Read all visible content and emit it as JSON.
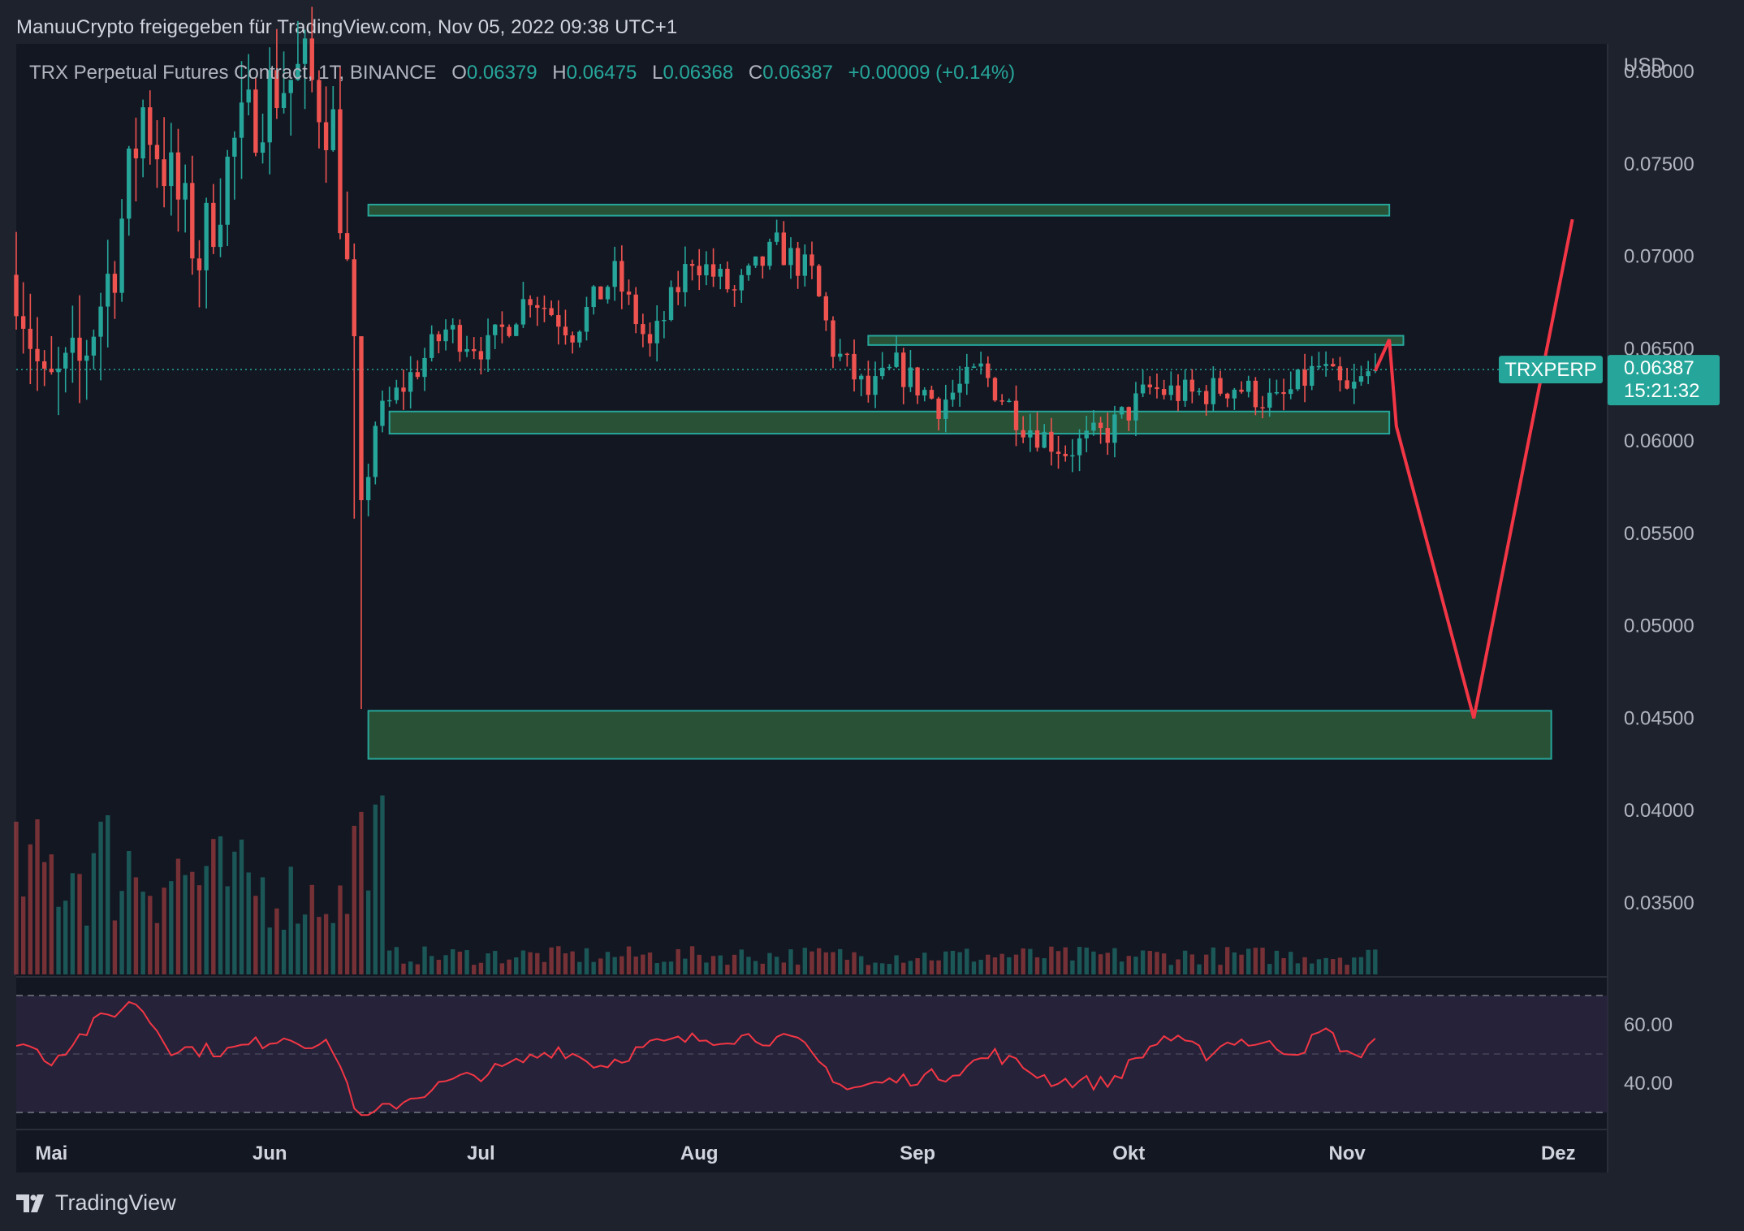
{
  "header": {
    "attribution": "ManuuCrypto freigegeben für TradingView.com, Nov 05, 2022 09:38 UTC+1"
  },
  "legend": {
    "symbol": "TRX Perpetual Futures Contract, 1T, BINANCE",
    "open_label": "O",
    "open": "0.06379",
    "high_label": "H",
    "high": "0.06475",
    "low_label": "L",
    "low": "0.06368",
    "close_label": "C",
    "close": "0.06387",
    "change": "+0.00009 (+0.14%)"
  },
  "price_axis": {
    "currency": "USD",
    "ticks": [
      "0.08000",
      "0.07500",
      "0.07000",
      "0.06500",
      "0.06000",
      "0.05500",
      "0.05000",
      "0.04500",
      "0.04000",
      "0.03500"
    ]
  },
  "price_tags": {
    "symbol": "TRXPERP",
    "last_price": "0.06387",
    "countdown": "15:21:32"
  },
  "rsi_axis": {
    "ticks": [
      "60.00",
      "40.00"
    ]
  },
  "time_axis": {
    "ticks": [
      "Mai",
      "Jun",
      "Jul",
      "Aug",
      "Sep",
      "Okt",
      "Nov",
      "Dez"
    ]
  },
  "branding": {
    "name": "TradingView"
  },
  "colors": {
    "background": "#131722",
    "panel": "#1e222d",
    "up": "#26a69a",
    "down": "#ef5350",
    "zone_fill": "#2e5c3a",
    "zone_border": "#26a69a",
    "projection": "#f23645",
    "rsi_line": "#f23645",
    "rsi_band": "#2a2640"
  },
  "chart_data": {
    "type": "candlestick",
    "title": "TRX Perpetual Futures Contract, 1T, BINANCE",
    "interval": "1 day",
    "y_unit": "USD",
    "ylim": [
      0.031,
      0.0815
    ],
    "x_range": [
      "2022-04-26",
      "2022-12-08"
    ],
    "grid": false,
    "last": {
      "open": 0.06379,
      "high": 0.06475,
      "low": 0.06368,
      "close": 0.06387,
      "change": 9e-05,
      "change_pct": 0.14
    },
    "ohlc_anchor_closes": [
      {
        "date": "2022-04-26",
        "close": 0.069
      },
      {
        "date": "2022-04-30",
        "close": 0.0625
      },
      {
        "date": "2022-05-05",
        "close": 0.064
      },
      {
        "date": "2022-05-10",
        "close": 0.07
      },
      {
        "date": "2022-05-14",
        "close": 0.078
      },
      {
        "date": "2022-05-18",
        "close": 0.074
      },
      {
        "date": "2022-05-22",
        "close": 0.07
      },
      {
        "date": "2022-05-27",
        "close": 0.076
      },
      {
        "date": "2022-06-01",
        "close": 0.079
      },
      {
        "date": "2022-06-06",
        "close": 0.08
      },
      {
        "date": "2022-06-10",
        "close": 0.077
      },
      {
        "date": "2022-06-13",
        "close": 0.065
      },
      {
        "date": "2022-06-14",
        "close": 0.056
      },
      {
        "date": "2022-06-16",
        "close": 0.061
      },
      {
        "date": "2022-06-20",
        "close": 0.063
      },
      {
        "date": "2022-06-26",
        "close": 0.066
      },
      {
        "date": "2022-07-02",
        "close": 0.065
      },
      {
        "date": "2022-07-08",
        "close": 0.068
      },
      {
        "date": "2022-07-14",
        "close": 0.066
      },
      {
        "date": "2022-07-20",
        "close": 0.069
      },
      {
        "date": "2022-07-25",
        "close": 0.065
      },
      {
        "date": "2022-07-31",
        "close": 0.07
      },
      {
        "date": "2022-08-06",
        "close": 0.068
      },
      {
        "date": "2022-08-12",
        "close": 0.0705
      },
      {
        "date": "2022-08-17",
        "close": 0.069
      },
      {
        "date": "2022-08-20",
        "close": 0.065
      },
      {
        "date": "2022-08-25",
        "close": 0.0625
      },
      {
        "date": "2022-08-29",
        "close": 0.064
      },
      {
        "date": "2022-09-04",
        "close": 0.062
      },
      {
        "date": "2022-09-10",
        "close": 0.0638
      },
      {
        "date": "2022-09-16",
        "close": 0.061
      },
      {
        "date": "2022-09-22",
        "close": 0.0595
      },
      {
        "date": "2022-09-28",
        "close": 0.0605
      },
      {
        "date": "2022-10-04",
        "close": 0.0628
      },
      {
        "date": "2022-10-10",
        "close": 0.0625
      },
      {
        "date": "2022-10-16",
        "close": 0.063
      },
      {
        "date": "2022-10-22",
        "close": 0.062
      },
      {
        "date": "2022-10-28",
        "close": 0.064
      },
      {
        "date": "2022-11-01",
        "close": 0.0625
      },
      {
        "date": "2022-11-05",
        "close": 0.0639
      }
    ],
    "zones": [
      {
        "from": "2022-06-15",
        "to": "2022-11-07",
        "low": 0.0722,
        "high": 0.0728
      },
      {
        "from": "2022-08-25",
        "to": "2022-11-09",
        "low": 0.0652,
        "high": 0.0657
      },
      {
        "from": "2022-06-18",
        "to": "2022-11-07",
        "low": 0.0604,
        "high": 0.0616
      },
      {
        "from": "2022-06-15",
        "to": "2022-11-30",
        "low": 0.0428,
        "high": 0.0454
      }
    ],
    "projection": [
      {
        "date": "2022-11-05",
        "price": 0.0638
      },
      {
        "date": "2022-11-07",
        "price": 0.0655
      },
      {
        "date": "2022-11-08",
        "price": 0.0608
      },
      {
        "date": "2022-11-19",
        "price": 0.045
      },
      {
        "date": "2022-12-03",
        "price": 0.072
      }
    ],
    "volume": {
      "peak_date": "2022-05-08",
      "relative_scale": true
    },
    "rsi": {
      "period_levels": [
        70,
        30
      ],
      "ticks": [
        60,
        40
      ],
      "ylim": [
        25,
        75
      ],
      "anchor_points": [
        {
          "date": "2022-04-26",
          "value": 55
        },
        {
          "date": "2022-05-01",
          "value": 48
        },
        {
          "date": "2022-05-08",
          "value": 62
        },
        {
          "date": "2022-05-13",
          "value": 68
        },
        {
          "date": "2022-05-18",
          "value": 52
        },
        {
          "date": "2022-05-26",
          "value": 51
        },
        {
          "date": "2022-06-03",
          "value": 56
        },
        {
          "date": "2022-06-10",
          "value": 52
        },
        {
          "date": "2022-06-14",
          "value": 27
        },
        {
          "date": "2022-06-18",
          "value": 32
        },
        {
          "date": "2022-06-26",
          "value": 40
        },
        {
          "date": "2022-07-04",
          "value": 45
        },
        {
          "date": "2022-07-12",
          "value": 52
        },
        {
          "date": "2022-07-18",
          "value": 46
        },
        {
          "date": "2022-07-25",
          "value": 53
        },
        {
          "date": "2022-07-31",
          "value": 55
        },
        {
          "date": "2022-08-08",
          "value": 56
        },
        {
          "date": "2022-08-15",
          "value": 54
        },
        {
          "date": "2022-08-22",
          "value": 38
        },
        {
          "date": "2022-08-29",
          "value": 41
        },
        {
          "date": "2022-09-05",
          "value": 43
        },
        {
          "date": "2022-09-12",
          "value": 50
        },
        {
          "date": "2022-09-20",
          "value": 41
        },
        {
          "date": "2022-09-28",
          "value": 40
        },
        {
          "date": "2022-10-06",
          "value": 56
        },
        {
          "date": "2022-10-12",
          "value": 50
        },
        {
          "date": "2022-10-16",
          "value": 55
        },
        {
          "date": "2022-10-25",
          "value": 51
        },
        {
          "date": "2022-10-29",
          "value": 58
        },
        {
          "date": "2022-11-02",
          "value": 48
        },
        {
          "date": "2022-11-05",
          "value": 56
        }
      ]
    }
  }
}
